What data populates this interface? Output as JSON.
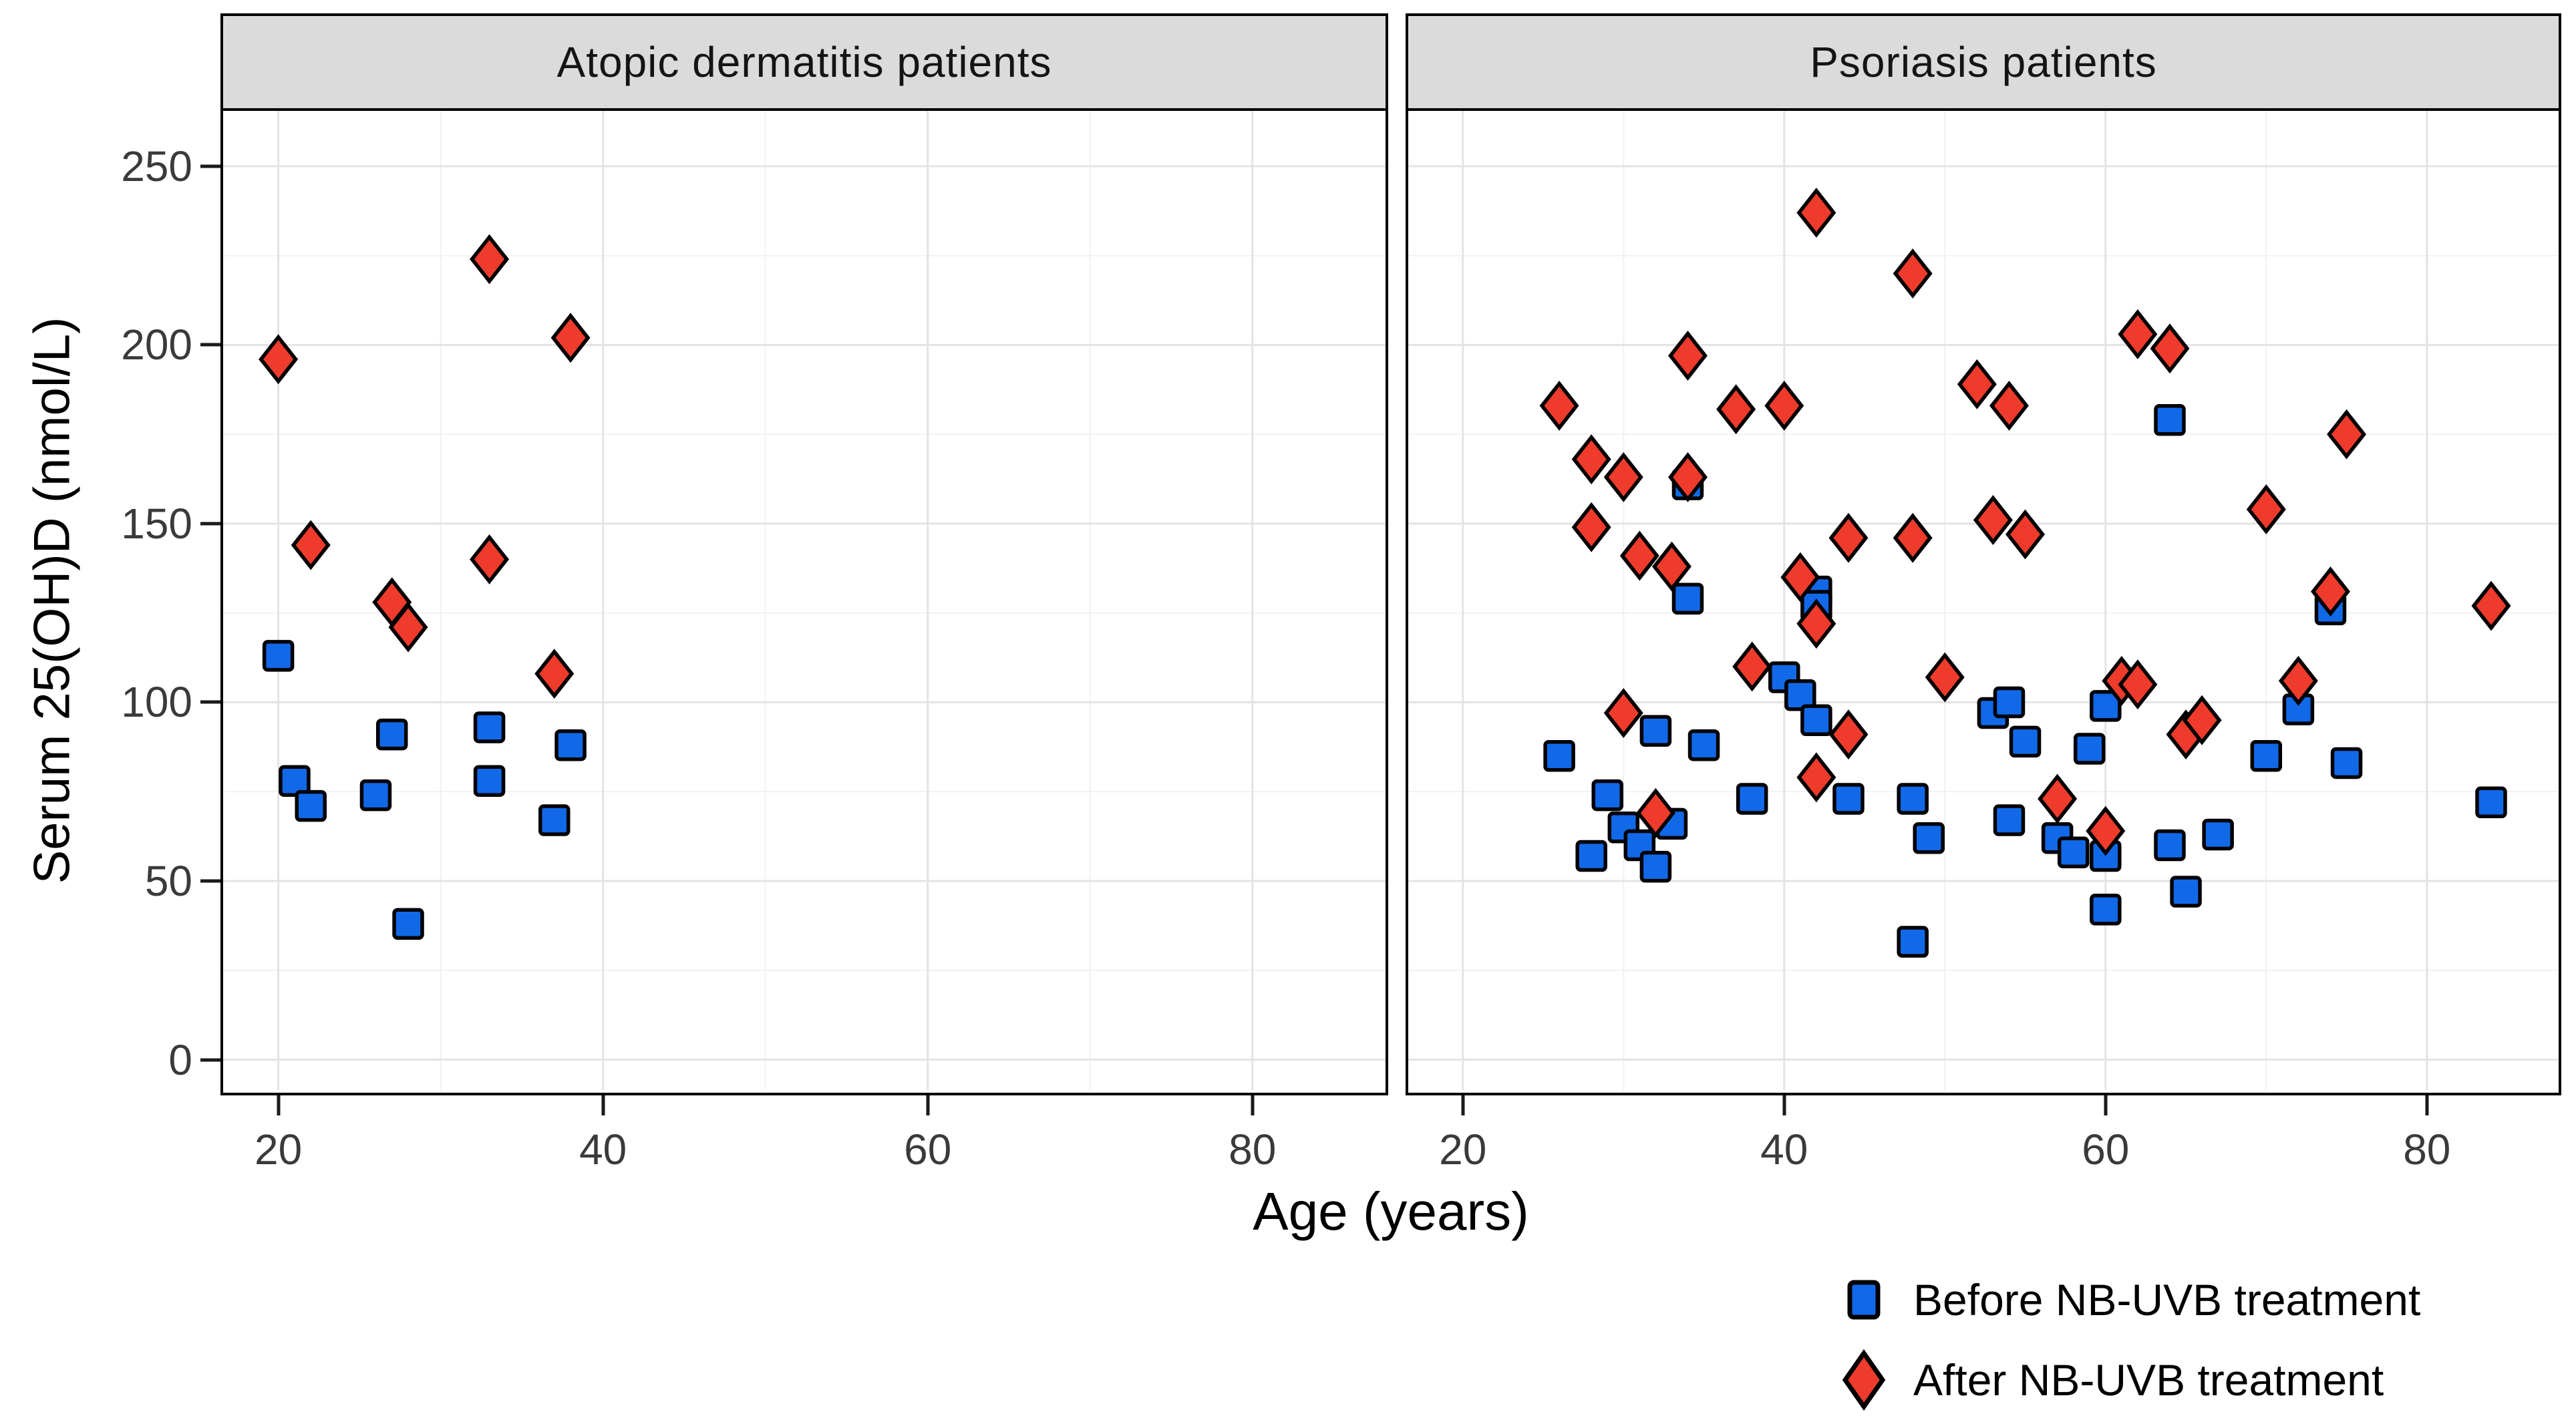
{
  "figure": {
    "x_axis_title": "Age (years)",
    "y_axis_title": "Serum 25(OH)D (nmol/L)"
  },
  "chart_data": {
    "type": "scatter",
    "xlabel": "Age (years)",
    "ylabel": "Serum 25(OH)D (nmol/L)",
    "xlim": [
      16.6,
      88.2
    ],
    "ylim": [
      -8.5,
      265.5
    ],
    "x_ticks": [
      20,
      40,
      60,
      80
    ],
    "x_minor_ticks": [
      30,
      50,
      70
    ],
    "y_ticks": [
      0,
      50,
      100,
      150,
      200,
      250
    ],
    "y_minor_ticks": [
      25,
      75,
      125,
      175,
      225
    ],
    "grid": "major+minor",
    "colors": {
      "before": "#1169e8",
      "after": "#ef3b2c",
      "marker_stroke": "#000000",
      "grid_major": "#e3e3e3",
      "grid_minor": "#f1f1f1",
      "header_bg": "#dbdbdb"
    },
    "legend_position": "bottom-right",
    "legend": [
      {
        "label": "Before NB-UVB treatment",
        "marker": "square",
        "color": "#1169e8"
      },
      {
        "label": "After NB-UVB treatment",
        "marker": "diamond",
        "color": "#ef3b2c"
      }
    ],
    "panels": [
      {
        "label": "Atopic dermatitis patients",
        "series": [
          {
            "name": "Before NB-UVB treatment",
            "marker": "square",
            "color": "#1169e8",
            "points": [
              [
                20,
                113
              ],
              [
                21,
                78
              ],
              [
                22,
                71
              ],
              [
                26,
                74
              ],
              [
                27,
                91
              ],
              [
                28,
                38
              ],
              [
                33,
                93
              ],
              [
                33,
                78
              ],
              [
                37,
                67
              ],
              [
                38,
                88
              ]
            ]
          },
          {
            "name": "After NB-UVB treatment",
            "marker": "diamond",
            "color": "#ef3b2c",
            "points": [
              [
                20,
                196
              ],
              [
                22,
                144
              ],
              [
                27,
                128
              ],
              [
                28,
                121
              ],
              [
                33,
                224
              ],
              [
                33,
                140
              ],
              [
                37,
                108
              ],
              [
                38,
                202
              ]
            ]
          }
        ]
      },
      {
        "label": "Psoriasis patients",
        "series": [
          {
            "name": "Before NB-UVB treatment",
            "marker": "square",
            "color": "#1169e8",
            "points": [
              [
                26,
                85
              ],
              [
                28,
                57
              ],
              [
                29,
                74
              ],
              [
                30,
                65
              ],
              [
                31,
                60
              ],
              [
                32,
                92
              ],
              [
                32,
                54
              ],
              [
                33,
                66
              ],
              [
                34,
                161
              ],
              [
                34,
                129
              ],
              [
                35,
                88
              ],
              [
                38,
                73
              ],
              [
                40,
                107
              ],
              [
                41,
                102
              ],
              [
                42,
                131
              ],
              [
                42,
                127
              ],
              [
                42,
                95
              ],
              [
                44,
                73
              ],
              [
                48,
                73
              ],
              [
                48,
                33
              ],
              [
                49,
                62
              ],
              [
                53,
                97
              ],
              [
                54,
                100
              ],
              [
                54,
                67
              ],
              [
                55,
                89
              ],
              [
                57,
                62
              ],
              [
                58,
                58
              ],
              [
                59,
                87
              ],
              [
                60,
                99
              ],
              [
                60,
                57
              ],
              [
                60,
                42
              ],
              [
                64,
                60
              ],
              [
                64,
                179
              ],
              [
                65,
                47
              ],
              [
                67,
                63
              ],
              [
                70,
                85
              ],
              [
                72,
                98
              ],
              [
                74,
                126
              ],
              [
                75,
                83
              ],
              [
                84,
                72
              ]
            ]
          },
          {
            "name": "After NB-UVB treatment",
            "marker": "diamond",
            "color": "#ef3b2c",
            "points": [
              [
                26,
                183
              ],
              [
                28,
                168
              ],
              [
                28,
                149
              ],
              [
                30,
                163
              ],
              [
                30,
                97
              ],
              [
                31,
                141
              ],
              [
                32,
                69
              ],
              [
                33,
                138
              ],
              [
                34,
                197
              ],
              [
                34,
                163
              ],
              [
                37,
                182
              ],
              [
                38,
                110
              ],
              [
                40,
                183
              ],
              [
                41,
                135
              ],
              [
                42,
                237
              ],
              [
                42,
                122
              ],
              [
                42,
                79
              ],
              [
                44,
                146
              ],
              [
                44,
                91
              ],
              [
                48,
                220
              ],
              [
                48,
                146
              ],
              [
                50,
                107
              ],
              [
                52,
                189
              ],
              [
                53,
                151
              ],
              [
                54,
                183
              ],
              [
                55,
                147
              ],
              [
                57,
                73
              ],
              [
                60,
                64
              ],
              [
                61,
                106
              ],
              [
                62,
                105
              ],
              [
                62,
                203
              ],
              [
                64,
                199
              ],
              [
                65,
                91
              ],
              [
                66,
                95
              ],
              [
                70,
                154
              ],
              [
                72,
                106
              ],
              [
                74,
                131
              ],
              [
                75,
                175
              ],
              [
                84,
                127
              ]
            ]
          }
        ]
      }
    ]
  }
}
